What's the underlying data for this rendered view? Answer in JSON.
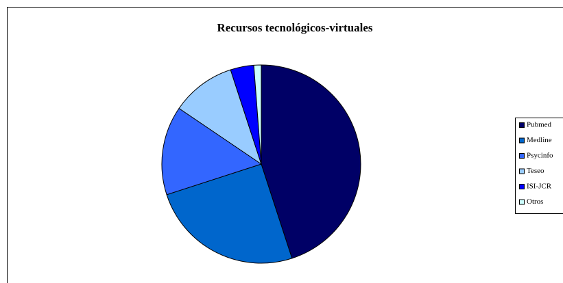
{
  "chart_data": {
    "type": "pie",
    "title": "Recursos tecnológicos-virtuales",
    "categories": [
      "Pubmed",
      "Medline",
      "Psycinfo",
      "Teseo",
      "ISI-JCR",
      "Otros"
    ],
    "values": [
      45,
      25,
      14.5,
      10.5,
      3.8,
      1.2
    ],
    "colors": [
      "#000066",
      "#0066cc",
      "#3366ff",
      "#99ccff",
      "#0000ff",
      "#ccffff"
    ],
    "legend": "right"
  }
}
